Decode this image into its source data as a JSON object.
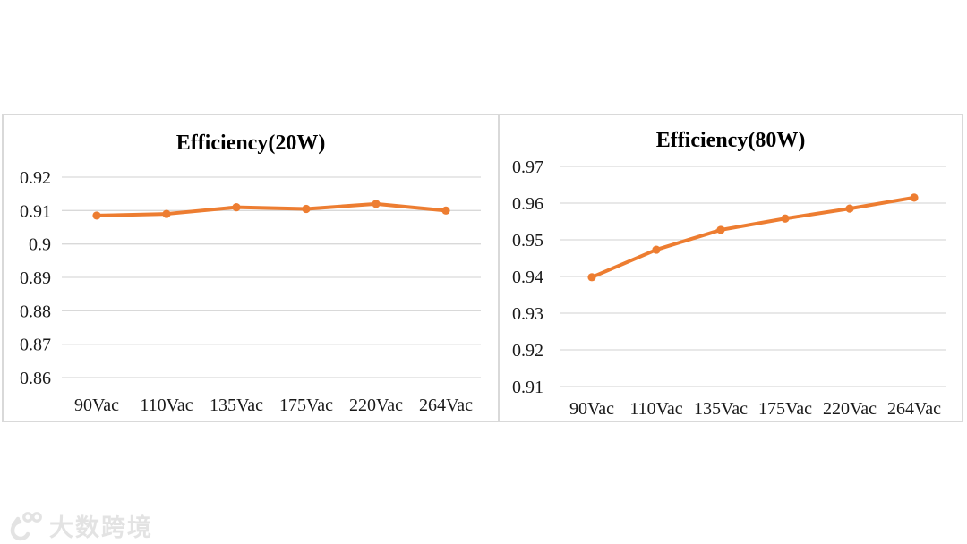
{
  "watermark": {
    "text": "大数跨境",
    "logo": "100-swoosh-logo",
    "color": "#e3e3e3"
  },
  "colors": {
    "line": "#ED7D31",
    "grid": "#d9d9d9",
    "axis_text": "#1a1a1a",
    "panel_border": "#d9d9d9"
  },
  "chart_data": [
    {
      "type": "line",
      "title": "Efficiency(20W)",
      "categories": [
        "90Vac",
        "110Vac",
        "135Vac",
        "175Vac",
        "220Vac",
        "264Vac"
      ],
      "series": [
        {
          "name": "Efficiency(20W)",
          "values": [
            0.9085,
            0.909,
            0.911,
            0.9105,
            0.912,
            0.91
          ]
        }
      ],
      "xlabel": "",
      "ylabel": "",
      "ylim": [
        0.86,
        0.92
      ],
      "yticks": [
        {
          "label": "0.92",
          "value": 0.92
        },
        {
          "label": "0.91",
          "value": 0.91
        },
        {
          "label": "0.9",
          "value": 0.9
        },
        {
          "label": "0.89",
          "value": 0.89
        },
        {
          "label": "0.88",
          "value": 0.88
        },
        {
          "label": "0.87",
          "value": 0.87
        },
        {
          "label": "0.86",
          "value": 0.86
        }
      ],
      "grid": true,
      "legend": "none",
      "line_color": "#ED7D31"
    },
    {
      "type": "line",
      "title": "Efficiency(80W)",
      "categories": [
        "90Vac",
        "110Vac",
        "135Vac",
        "175Vac",
        "220Vac",
        "264Vac"
      ],
      "series": [
        {
          "name": "Efficiency(80W)",
          "values": [
            0.9398,
            0.9473,
            0.9527,
            0.9558,
            0.9585,
            0.9615
          ]
        }
      ],
      "xlabel": "",
      "ylabel": "",
      "ylim": [
        0.91,
        0.97
      ],
      "yticks": [
        {
          "label": "0.97",
          "value": 0.97
        },
        {
          "label": "0.96",
          "value": 0.96
        },
        {
          "label": "0.95",
          "value": 0.95
        },
        {
          "label": "0.94",
          "value": 0.94
        },
        {
          "label": "0.93",
          "value": 0.93
        },
        {
          "label": "0.92",
          "value": 0.92
        },
        {
          "label": "0.91",
          "value": 0.91
        }
      ],
      "grid": true,
      "legend": "none",
      "line_color": "#ED7D31"
    }
  ]
}
